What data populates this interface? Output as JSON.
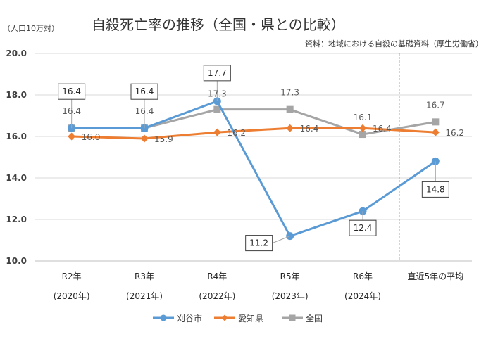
{
  "header": {
    "title": "自殺死亡率の推移（全国・県との比較）",
    "unit": "（人口10万対）",
    "source": "資料：地域における自殺の基礎資料（厚生労働省）"
  },
  "chart_data": {
    "type": "line",
    "categories": [
      {
        "label": "R2年",
        "sub": "(2020年)"
      },
      {
        "label": "R3年",
        "sub": "(2021年)"
      },
      {
        "label": "R4年",
        "sub": "(2022年)"
      },
      {
        "label": "R5年",
        "sub": "(2023年)"
      },
      {
        "label": "R6年",
        "sub": "(2024年)"
      },
      {
        "label": "直近5年の平均",
        "sub": ""
      }
    ],
    "ylim": [
      10.0,
      20.0
    ],
    "yticks": [
      "10.0",
      "12.0",
      "14.0",
      "16.0",
      "18.0",
      "20.0"
    ],
    "grid": true,
    "legend_position": "bottom",
    "series": [
      {
        "name": "刈谷市",
        "values": [
          16.4,
          16.4,
          17.7,
          11.2,
          12.4,
          14.8
        ],
        "labels": [
          "16.4",
          "16.4",
          "17.7",
          "11.2",
          "12.4",
          "14.8"
        ],
        "color": "#5B9BD5",
        "marker": "circle"
      },
      {
        "name": "愛知県",
        "values": [
          16.0,
          15.9,
          16.2,
          16.4,
          16.4,
          16.2
        ],
        "labels": [
          "16.0",
          "15.9",
          "16.2",
          "16.4",
          "16.4",
          "16.2"
        ],
        "color": "#ED7D31",
        "marker": "diamond"
      },
      {
        "name": "全国",
        "values": [
          16.4,
          16.4,
          17.3,
          17.3,
          16.1,
          16.7
        ],
        "labels": [
          "16.4",
          "16.4",
          "17.3",
          "17.3",
          "16.1",
          "16.7"
        ],
        "color": "#A5A5A5",
        "marker": "square"
      }
    ]
  }
}
